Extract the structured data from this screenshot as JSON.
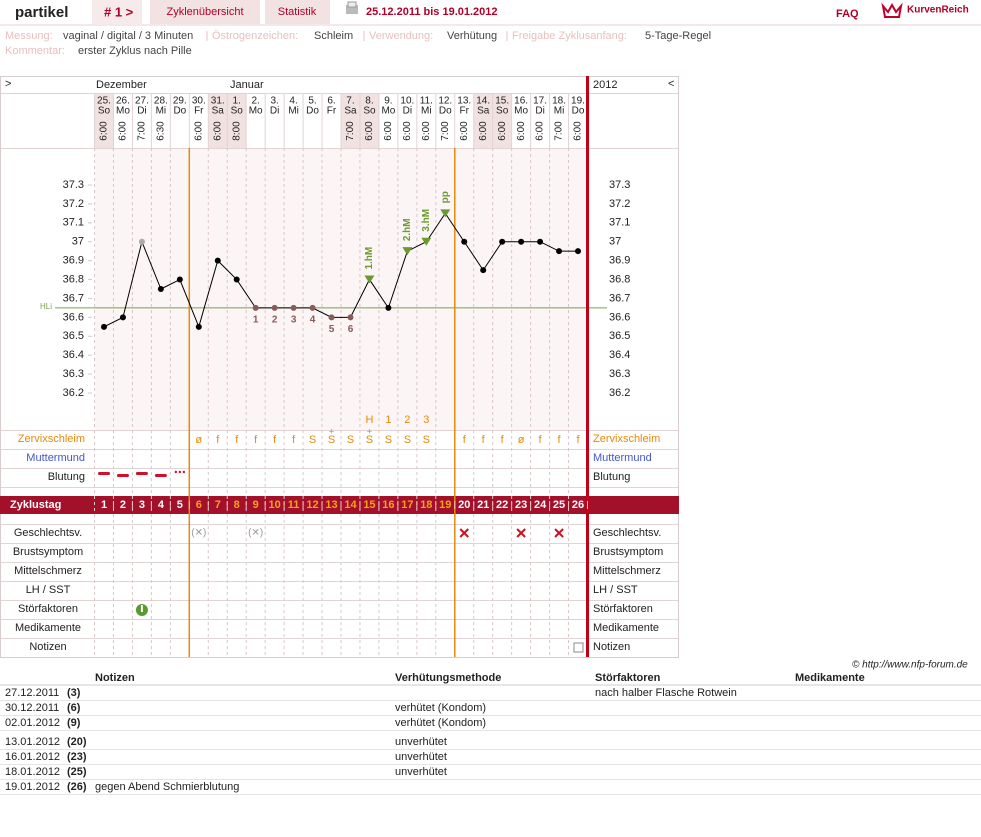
{
  "header": {
    "user": "partikel",
    "cycle": "# 1 >",
    "tabs": [
      "Zyklenübersicht",
      "Statistik"
    ],
    "range": "25.12.2011 bis 19.01.2012",
    "faq": "FAQ",
    "brand": "KurvenReich"
  },
  "info": {
    "fields": [
      {
        "label": "Messung:",
        "value": "vaginal / digital / 3 Minuten"
      },
      {
        "label": "Östrogenzeichen:",
        "value": "Schleim"
      },
      {
        "label": "Verwendung:",
        "value": "Verhütung"
      },
      {
        "label": "Freigabe Zyklusanfang:",
        "value": "5-Tage-Regel"
      }
    ],
    "comment": {
      "label": "Kommentar:",
      "value": "erster Zyklus nach Pille"
    }
  },
  "calendar": {
    "prev": ">",
    "next": "<",
    "year": "2012",
    "months": [
      "Dezember",
      "Januar"
    ],
    "days": [
      "25.",
      "26.",
      "27.",
      "28.",
      "29.",
      "30.",
      "31.",
      "1.",
      "2.",
      "3.",
      "4.",
      "5.",
      "6.",
      "7.",
      "8.",
      "9.",
      "10.",
      "11.",
      "12.",
      "13.",
      "14.",
      "15.",
      "16.",
      "17.",
      "18.",
      "19."
    ],
    "weekdays": [
      "So",
      "Mo",
      "Di",
      "Mi",
      "Do",
      "Fr",
      "Sa",
      "So",
      "Mo",
      "Di",
      "Mi",
      "Do",
      "Fr",
      "Sa",
      "So",
      "Mo",
      "Di",
      "Mi",
      "Do",
      "Fr",
      "Sa",
      "So",
      "Mo",
      "Di",
      "Mi",
      "Do"
    ],
    "times": [
      "6:00",
      "6:00",
      "7:00",
      "6:30",
      null,
      "6:00",
      "6:00",
      "8:00",
      null,
      null,
      null,
      null,
      null,
      "7:00",
      "6:00",
      "6:00",
      "6:00",
      "6:00",
      "7:00",
      "6:00",
      "6:00",
      "6:00",
      "6:00",
      "6:00",
      "7:00",
      "6:00"
    ]
  },
  "chart_data": {
    "type": "line",
    "categories": [
      1,
      2,
      3,
      4,
      5,
      6,
      7,
      8,
      9,
      10,
      11,
      12,
      13,
      14,
      15,
      16,
      17,
      18,
      19,
      20,
      21,
      22,
      23,
      24,
      25,
      26
    ],
    "values": [
      36.55,
      36.6,
      37.0,
      36.75,
      36.8,
      36.55,
      36.9,
      36.8,
      36.65,
      36.65,
      36.65,
      36.65,
      36.6,
      36.6,
      36.8,
      36.65,
      36.95,
      37.0,
      37.15,
      37.0,
      36.85,
      37.0,
      37.0,
      37.0,
      36.95,
      36.95
    ],
    "color": "#000000",
    "ylim": [
      36.2,
      37.3
    ],
    "yticks": [
      37.3,
      37.2,
      37.1,
      37,
      36.9,
      36.8,
      36.7,
      36.6,
      36.5,
      36.4,
      36.3,
      36.2
    ],
    "hl": {
      "value": 36.65,
      "label": "HLi"
    },
    "low_labels": [
      null,
      null,
      null,
      null,
      null,
      null,
      null,
      null,
      "1",
      "2",
      "3",
      "4",
      "5",
      "6",
      null,
      null,
      null,
      null,
      null,
      null,
      null,
      null,
      null,
      null,
      null,
      null
    ],
    "peak_labels": [
      null,
      null,
      null,
      null,
      null,
      null,
      null,
      null,
      null,
      null,
      null,
      null,
      null,
      null,
      "1.hM",
      null,
      "2.hM",
      "3.hM",
      "pp",
      null,
      null,
      null,
      null,
      null,
      null,
      null
    ]
  },
  "rows": {
    "labels": [
      "Zervixschleim",
      "Muttermund",
      "Blutung"
    ],
    "cycle_label": "Zyklustag",
    "lower": [
      "Geschlechtsv.",
      "Brustsymptom",
      "Mittelschmerz",
      "LH / SST",
      "Störfaktoren",
      "Medikamente",
      "Notizen"
    ]
  },
  "zervix": [
    null,
    null,
    null,
    null,
    null,
    "ø",
    "f",
    "f",
    "f",
    "f",
    "f",
    "S",
    "S",
    "S",
    "S",
    "S",
    "S",
    "S",
    null,
    "f",
    "f",
    "f",
    "ø",
    "f",
    "f",
    "f"
  ],
  "zervix_marks": [
    null,
    null,
    null,
    null,
    null,
    null,
    null,
    null,
    null,
    null,
    null,
    null,
    "+",
    null,
    "+",
    null,
    null,
    null,
    null,
    null,
    null,
    null,
    null,
    null,
    null,
    null
  ],
  "zervix_top": [
    null,
    null,
    null,
    null,
    null,
    null,
    null,
    null,
    null,
    null,
    null,
    null,
    null,
    null,
    "H",
    "1",
    "2",
    "3",
    null,
    null,
    null,
    null,
    null,
    null,
    null,
    null
  ],
  "copyright": "© http://www.nfp-forum.de",
  "notes_table": {
    "headers": [
      "Notizen",
      "Verhütungsmethode",
      "Störfaktoren",
      "Medikamente"
    ],
    "rows": [
      [
        "27.12.2011",
        "(3)",
        null,
        null,
        "nach halber Flasche Rotwein"
      ],
      [
        "30.12.2011",
        "(6)",
        null,
        "verhütet (Kondom)",
        null
      ],
      [
        "02.01.2012",
        "(9)",
        null,
        "verhütet (Kondom)",
        null
      ],
      [
        "13.01.2012",
        "(20)",
        null,
        "unverhütet",
        null
      ],
      [
        "16.01.2012",
        "(23)",
        null,
        "unverhütet",
        null
      ],
      [
        "18.01.2012",
        "(25)",
        null,
        "unverhütet",
        null
      ],
      [
        "19.01.2012",
        "(26)",
        "gegen Abend Schmierblutung",
        null,
        null
      ]
    ]
  }
}
